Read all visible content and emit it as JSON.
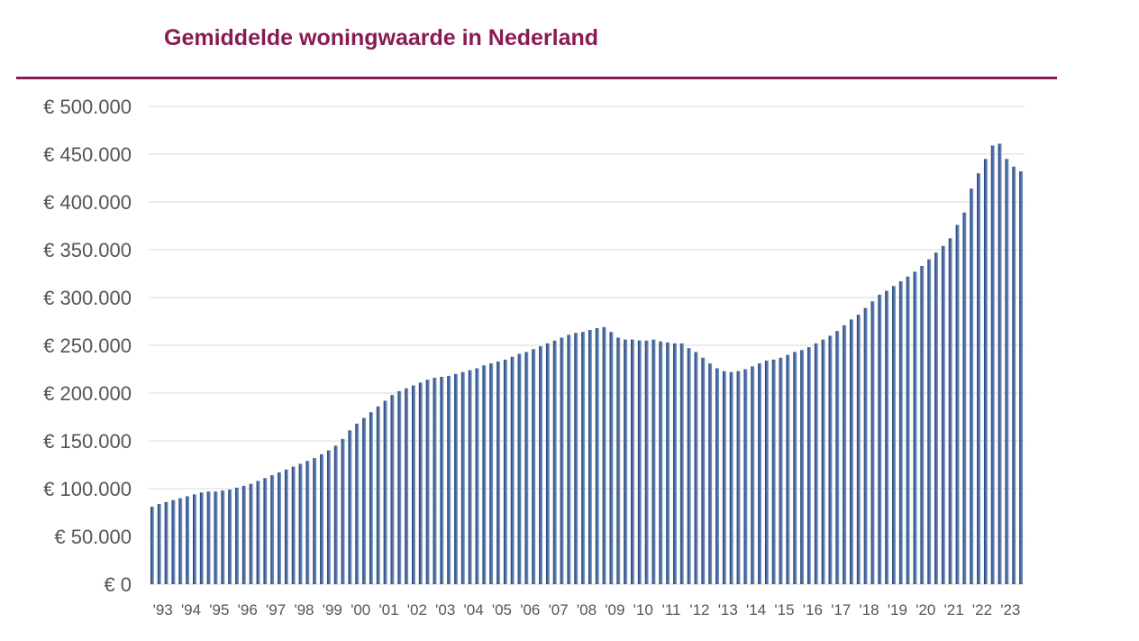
{
  "title": "Gemiddelde woningwaarde in Nederland",
  "colors": {
    "title": "#8a1a52",
    "rule": "#8a1a52",
    "bar_dark": "#1f3f73",
    "bar_light": "#7d9ccd",
    "grid": "#d9d9d9",
    "text": "#555555"
  },
  "chart_data": {
    "type": "bar",
    "title": "Gemiddelde woningwaarde in Nederland",
    "xlabel": "",
    "ylabel": "",
    "ylim": [
      0,
      500000
    ],
    "yticks": [
      0,
      50000,
      100000,
      150000,
      200000,
      250000,
      300000,
      350000,
      400000,
      450000,
      500000
    ],
    "ytick_labels": [
      "€ 0",
      "€ 50.000",
      "€ 100.000",
      "€ 150.000",
      "€ 200.000",
      "€ 250.000",
      "€ 300.000",
      "€ 350.000",
      "€ 400.000",
      "€ 450.000",
      "€ 500.000"
    ],
    "grid": true,
    "legend": "none",
    "years": [
      "'93",
      "'94",
      "'95",
      "'96",
      "'97",
      "'98",
      "'99",
      "'00",
      "'01",
      "'02",
      "'03",
      "'04",
      "'05",
      "'06",
      "'07",
      "'08",
      "'09",
      "'10",
      "'11",
      "'12",
      "'13",
      "'14",
      "'15",
      "'16",
      "'17",
      "'18",
      "'19",
      "'20",
      "'21",
      "'22",
      "'23"
    ],
    "bars_per_year": 4,
    "values": [
      81000,
      84000,
      86000,
      88000,
      90000,
      92000,
      94000,
      96000,
      97000,
      97000,
      98000,
      99000,
      101000,
      103000,
      105000,
      108000,
      111000,
      114000,
      117000,
      120000,
      123000,
      126000,
      129000,
      132000,
      136000,
      140000,
      145000,
      152000,
      161000,
      168000,
      174000,
      180000,
      186000,
      192000,
      198000,
      202000,
      205000,
      208000,
      211000,
      214000,
      216000,
      217000,
      218000,
      220000,
      222000,
      224000,
      226000,
      229000,
      231000,
      233000,
      235000,
      238000,
      241000,
      243000,
      246000,
      249000,
      252000,
      255000,
      258000,
      261000,
      263000,
      264000,
      266000,
      268000,
      269000,
      264000,
      258000,
      256000,
      256000,
      255000,
      255000,
      256000,
      254000,
      253000,
      252000,
      252000,
      247000,
      243000,
      237000,
      231000,
      226000,
      223000,
      222000,
      223000,
      225000,
      228000,
      231000,
      234000,
      235000,
      237000,
      240000,
      243000,
      245000,
      248000,
      252000,
      256000,
      260000,
      265000,
      271000,
      277000,
      282000,
      289000,
      296000,
      303000,
      307000,
      312000,
      317000,
      322000,
      327000,
      333000,
      340000,
      347000,
      354000,
      362000,
      376000,
      389000,
      414000,
      430000,
      445000,
      459000,
      461000,
      445000,
      437000,
      432000
    ]
  }
}
